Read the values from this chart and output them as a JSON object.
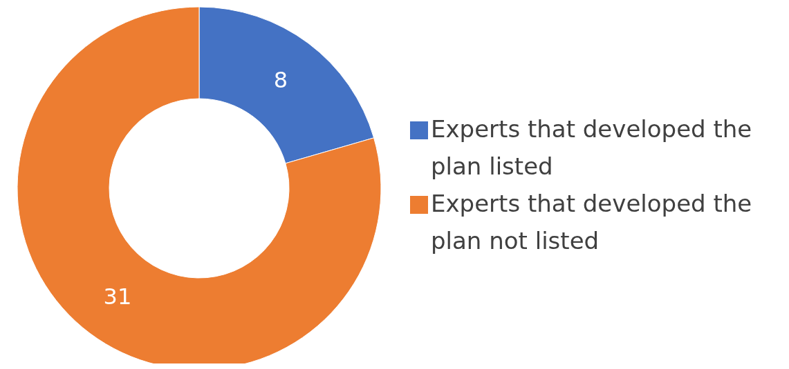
{
  "chart_data": {
    "type": "donut",
    "categories": [
      "Experts that developed the plan listed",
      "Experts that developed the plan not listed"
    ],
    "values": [
      8,
      31
    ],
    "colors": [
      "#4472c4",
      "#ed7d31"
    ],
    "data_labels": true,
    "legend": "right"
  }
}
